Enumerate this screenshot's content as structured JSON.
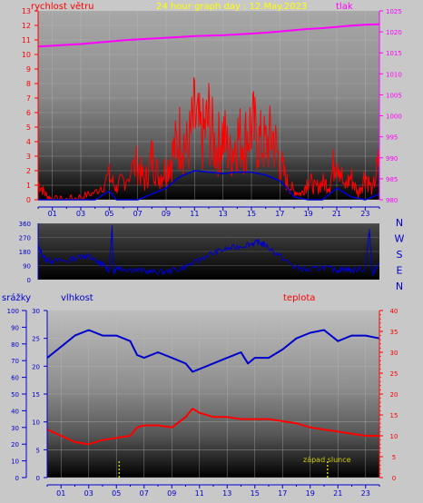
{
  "title": "24 hour graph day : 12.May.2023",
  "colors": {
    "page_bg": "#c8c8c8",
    "title": "#ffff00",
    "wind": "#ff0000",
    "gust": "#0000cc",
    "pressure": "#ff00ff",
    "humidity": "#0000cc",
    "temperature": "#ff0000",
    "sunset": "#cccc00",
    "axis_text_left": "#0000cc",
    "axis_text_right_temp": "#ff0000",
    "axis_text_right_pressure": "#ff00ff"
  },
  "chart_data": [
    {
      "type": "line",
      "panel": "wind-pressure",
      "title": "24 hour graph day : 12.May.2023",
      "left_label": "rychlost větru",
      "right_label": "tlak",
      "x_ticks": [
        "01",
        "03",
        "05",
        "07",
        "09",
        "11",
        "13",
        "15",
        "17",
        "19",
        "21",
        "23"
      ],
      "xlim": [
        0,
        24
      ],
      "left_ylim": [
        0,
        13
      ],
      "left_ticks": [
        "0",
        "1",
        "2",
        "3",
        "4",
        "5",
        "6",
        "7",
        "8",
        "9",
        "10",
        "11",
        "12",
        "13"
      ],
      "right_ylim": [
        980,
        1025
      ],
      "right_ticks": [
        "980",
        "985",
        "990",
        "995",
        "1000",
        "1005",
        "1010",
        "1015",
        "1020",
        "1025"
      ],
      "series": [
        {
          "axis": "right",
          "x": [
            0,
            1,
            2,
            3,
            4,
            5,
            6,
            7,
            8,
            9,
            10,
            11,
            12,
            13,
            14,
            15,
            16,
            17,
            18,
            19,
            20,
            21,
            22,
            23,
            24
          ],
          "values": [
            1016.5,
            1016.7,
            1016.9,
            1017.1,
            1017.4,
            1017.7,
            1018,
            1018.2,
            1018.4,
            1018.6,
            1018.8,
            1019,
            1019.1,
            1019.2,
            1019.4,
            1019.6,
            1019.8,
            1020.1,
            1020.4,
            1020.7,
            1020.9,
            1021.2,
            1021.5,
            1021.7,
            1021.8
          ]
        },
        {
          "axis": "left",
          "x": [
            0,
            0.5,
            1,
            2,
            3,
            4,
            5,
            5.5,
            6,
            7,
            7.5,
            8,
            8.5,
            9,
            9.5,
            10,
            10.5,
            11,
            11.5,
            12,
            12.5,
            13,
            13.5,
            14,
            14.5,
            15,
            15.5,
            16,
            16.5,
            17,
            17.5,
            18,
            18.5,
            19,
            19.5,
            20,
            20.5,
            21,
            21.5,
            22,
            22.5,
            23,
            23.5,
            24
          ],
          "values": [
            1.2,
            0.4,
            0,
            0,
            0.2,
            0.5,
            1.6,
            0.8,
            1.4,
            2.5,
            1.2,
            3.0,
            1.6,
            2.2,
            3.2,
            4.5,
            3.5,
            5.6,
            4.2,
            5.5,
            3.4,
            4.6,
            3.0,
            4.4,
            4.0,
            5.2,
            4.0,
            3.8,
            4.4,
            2.6,
            1.2,
            0.6,
            0.4,
            1.4,
            0.8,
            1.2,
            1.0,
            3.5,
            0.8,
            1.6,
            0.4,
            1.8,
            0.6,
            2.8
          ]
        },
        {
          "axis": "left",
          "x": [
            0,
            1,
            2,
            3,
            4,
            5,
            5.5,
            6,
            7,
            8,
            9,
            9.5,
            10,
            10.5,
            11,
            12,
            13,
            14,
            15,
            16,
            16.5,
            17,
            17.5,
            18,
            19,
            20,
            21,
            22,
            23,
            24
          ],
          "values": [
            0,
            0,
            0,
            0,
            0,
            0.6,
            0,
            0,
            0,
            0.4,
            0.8,
            1.2,
            1.6,
            1.8,
            2.0,
            1.9,
            1.8,
            1.9,
            1.9,
            1.7,
            1.5,
            1.3,
            0.8,
            0.2,
            0,
            0,
            0.8,
            0.2,
            0,
            0.4
          ]
        }
      ]
    },
    {
      "type": "line",
      "panel": "wind-direction",
      "left_ticks": [
        "0",
        "90",
        "180",
        "270",
        "360"
      ],
      "ylim": [
        0,
        360
      ],
      "right_labels": [
        "N",
        "W",
        "S",
        "E",
        "N"
      ],
      "series": [
        {
          "x": [
            0,
            0.5,
            1,
            2,
            3,
            3.5,
            4,
            4.5,
            5,
            5.2,
            5.3,
            5.5,
            6,
            7,
            8,
            9,
            10,
            11,
            12,
            13,
            14,
            15,
            15.5,
            16,
            17,
            18,
            19,
            20,
            21,
            21.5,
            22,
            23,
            23.3,
            23.5,
            24
          ],
          "values": [
            210,
            130,
            120,
            120,
            150,
            150,
            120,
            100,
            60,
            335,
            40,
            80,
            70,
            60,
            50,
            50,
            70,
            110,
            160,
            190,
            210,
            230,
            240,
            220,
            150,
            80,
            60,
            80,
            60,
            70,
            60,
            70,
            320,
            40,
            100
          ]
        }
      ]
    },
    {
      "type": "line",
      "panel": "temp-humidity-rain",
      "left_label": "srážky",
      "mid_label": "vlhkost",
      "right_label": "teplota",
      "annotation": "západ slunce",
      "x_ticks": [
        "01",
        "03",
        "05",
        "07",
        "09",
        "11",
        "13",
        "15",
        "17",
        "19",
        "21",
        "23"
      ],
      "xlim": [
        0,
        24
      ],
      "rain_ticks": [
        "0",
        "10",
        "20",
        "30",
        "40",
        "50",
        "60",
        "70",
        "80",
        "90",
        "100"
      ],
      "humidity_ticks": [
        "0",
        "5",
        "10",
        "15",
        "20",
        "25",
        "30"
      ],
      "humidity_ylim": [
        0,
        30
      ],
      "temp_ticks": [
        "0",
        "5",
        "10",
        "15",
        "20",
        "25",
        "30",
        "35",
        "40"
      ],
      "temp_ylim": [
        0,
        40
      ],
      "sunset_x": 20.25,
      "solar_marks_x": [
        5.2,
        20.25
      ],
      "series": [
        {
          "axis": "humidity",
          "x": [
            0,
            1,
            2,
            3,
            4,
            5,
            6,
            6.5,
            7,
            8,
            9,
            10,
            10.5,
            11,
            12,
            13,
            14,
            14.5,
            15,
            16,
            17,
            18,
            19,
            20,
            21,
            22,
            23,
            24
          ],
          "values": [
            21.5,
            23.5,
            25.5,
            26.5,
            25.5,
            25.5,
            24.5,
            22,
            21.5,
            22.5,
            21.5,
            20.5,
            19,
            19.5,
            20.5,
            21.5,
            22.5,
            20.5,
            21.5,
            21.5,
            23,
            25,
            26,
            26.5,
            24.5,
            25.5,
            25.5,
            25
          ]
        },
        {
          "axis": "temp",
          "x": [
            0,
            1,
            2,
            3,
            4,
            5,
            6,
            6.5,
            7,
            8,
            9,
            10,
            10.5,
            11,
            12,
            13,
            14,
            15,
            16,
            17,
            18,
            19,
            20,
            21,
            22,
            23,
            24
          ],
          "values": [
            11.5,
            10.0,
            8.5,
            8.0,
            9.0,
            9.5,
            10.0,
            12.0,
            12.5,
            12.5,
            12.0,
            14.5,
            16.5,
            15.5,
            14.5,
            14.5,
            14.0,
            14.0,
            14.0,
            13.5,
            13.0,
            12.0,
            11.5,
            11.0,
            10.5,
            10.0,
            10.0
          ]
        }
      ]
    }
  ]
}
